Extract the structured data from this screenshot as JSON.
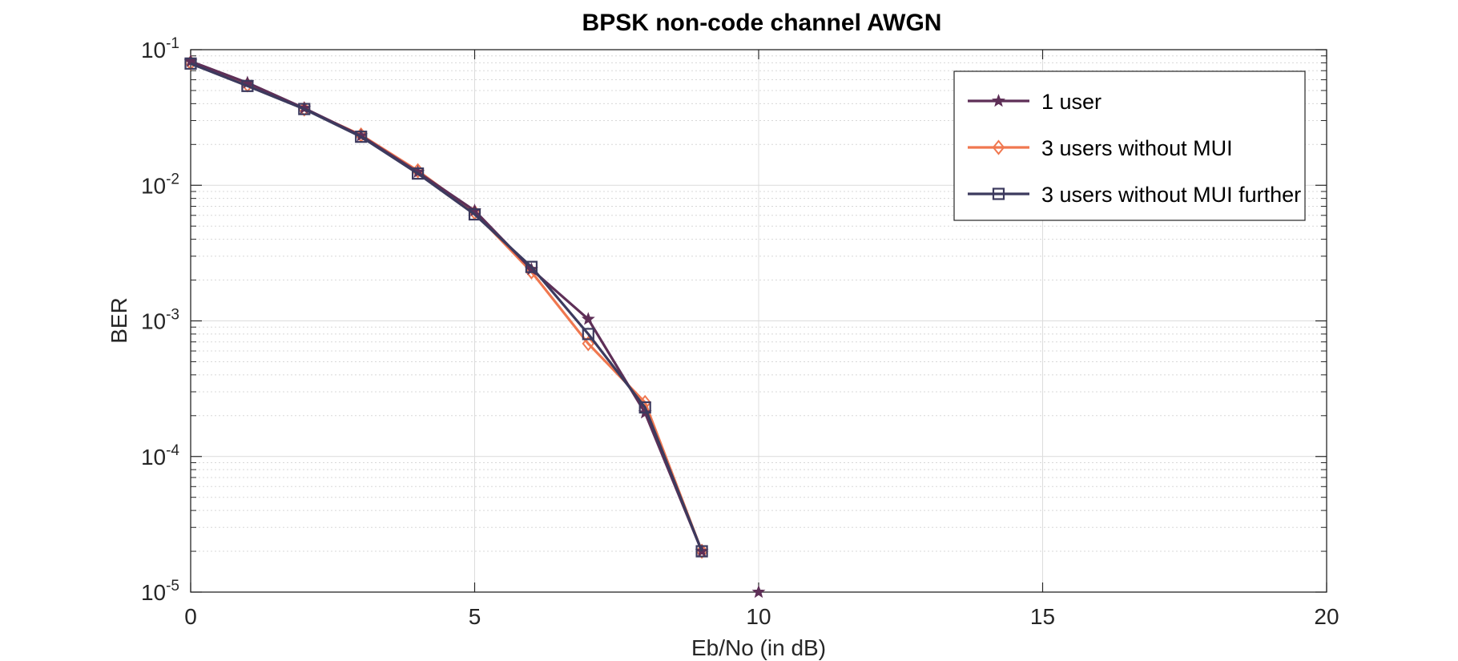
{
  "chart_data": {
    "type": "line",
    "title": "BPSK non-code channel AWGN",
    "xlabel": "Eb/No (in dB)",
    "ylabel": "BER",
    "xlim": [
      0,
      20
    ],
    "ylim": [
      1e-05,
      0.1
    ],
    "yscale": "log",
    "grid": true,
    "legend_position": "top-right",
    "x_ticks": [
      "0",
      "5",
      "10",
      "15",
      "20"
    ],
    "y_ticks": [
      {
        "value": 0.1,
        "base": "10",
        "exp": "-1"
      },
      {
        "value": 0.01,
        "base": "10",
        "exp": "-2"
      },
      {
        "value": 0.001,
        "base": "10",
        "exp": "-3"
      },
      {
        "value": 0.0001,
        "base": "10",
        "exp": "-4"
      },
      {
        "value": 1e-05,
        "base": "10",
        "exp": "-5"
      }
    ],
    "series": [
      {
        "name": "1 user",
        "color": "#5e2f57",
        "marker": "star",
        "x": [
          0,
          1,
          2,
          3,
          4,
          5,
          6,
          7,
          8,
          9,
          10
        ],
        "y": [
          0.082,
          0.057,
          0.037,
          0.0232,
          0.0125,
          0.0065,
          0.0024,
          0.00103,
          0.00021,
          2e-05,
          1e-05
        ]
      },
      {
        "name": "3 users without MUI",
        "color": "#f07850",
        "marker": "diamond",
        "x": [
          0,
          1,
          2,
          3,
          4,
          5,
          6,
          7,
          8,
          9
        ],
        "y": [
          0.08,
          0.055,
          0.0365,
          0.0235,
          0.0128,
          0.0063,
          0.0023,
          0.00068,
          0.00025,
          2e-05
        ]
      },
      {
        "name": "3 users without MUI further",
        "color": "#3c3a5e",
        "marker": "square",
        "x": [
          0,
          1,
          2,
          3,
          4,
          5,
          6,
          7,
          8,
          9
        ],
        "y": [
          0.079,
          0.054,
          0.0365,
          0.0228,
          0.0122,
          0.0061,
          0.0025,
          0.0008,
          0.00023,
          2e-05
        ]
      }
    ]
  }
}
